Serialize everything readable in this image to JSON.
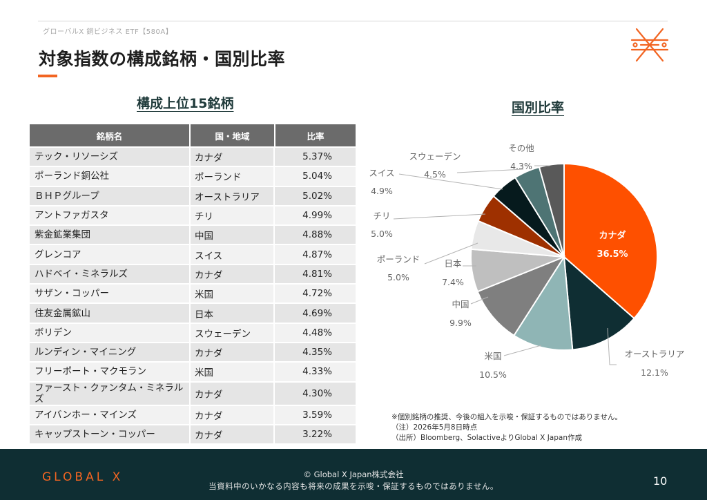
{
  "header": {
    "fund_name": "グローバルX 銅ビジネス ETF【580A】",
    "page_title": "対象指数の構成銘柄・国別比率"
  },
  "table": {
    "title": "構成上位15銘柄",
    "columns": [
      "銘柄名",
      "国・地域",
      "比率"
    ],
    "rows": [
      {
        "name": "テック・リソーシズ",
        "country": "カナダ",
        "weight": "5.37%"
      },
      {
        "name": "ポーランド銅公社",
        "country": "ポーランド",
        "weight": "5.04%"
      },
      {
        "name": "ＢＨＰグループ",
        "country": "オーストラリア",
        "weight": "5.02%"
      },
      {
        "name": "アントファガスタ",
        "country": "チリ",
        "weight": "4.99%"
      },
      {
        "name": "紫金鉱業集団",
        "country": "中国",
        "weight": "4.88%"
      },
      {
        "name": "グレンコア",
        "country": "スイス",
        "weight": "4.87%"
      },
      {
        "name": "ハドベイ・ミネラルズ",
        "country": "カナダ",
        "weight": "4.81%"
      },
      {
        "name": "サザン・コッパー",
        "country": "米国",
        "weight": "4.72%"
      },
      {
        "name": "住友金属鉱山",
        "country": "日本",
        "weight": "4.69%"
      },
      {
        "name": "ボリデン",
        "country": "スウェーデン",
        "weight": "4.48%"
      },
      {
        "name": "ルンディン・マイニング",
        "country": "カナダ",
        "weight": "4.35%"
      },
      {
        "name": "フリーポート・マクモラン",
        "country": "米国",
        "weight": "4.33%"
      },
      {
        "name": "ファースト・クァンタム・ミネラルズ",
        "country": "カナダ",
        "weight": "4.30%"
      },
      {
        "name": "アイバンホー・マインズ",
        "country": "カナダ",
        "weight": "3.59%"
      },
      {
        "name": "キャップストーン・コッパー",
        "country": "カナダ",
        "weight": "3.22%"
      }
    ]
  },
  "chart_data": {
    "type": "pie",
    "title": "国別比率",
    "slices": [
      {
        "label": "カナダ",
        "value": 36.5,
        "display": "36.5%",
        "color": "#fe5000"
      },
      {
        "label": "オーストラリア",
        "value": 12.1,
        "display": "12.1%",
        "color": "#0f2e33"
      },
      {
        "label": "米国",
        "value": 10.5,
        "display": "10.5%",
        "color": "#8fb5b5"
      },
      {
        "label": "中国",
        "value": 9.9,
        "display": "9.9%",
        "color": "#7f7f7f"
      },
      {
        "label": "日本",
        "value": 7.4,
        "display": "7.4%",
        "color": "#bfbfbf"
      },
      {
        "label": "ポーランド",
        "value": 5.0,
        "display": "5.0%",
        "color": "#e8e8e8"
      },
      {
        "label": "チリ",
        "value": 5.0,
        "display": "5.0%",
        "color": "#9e3000"
      },
      {
        "label": "スイス",
        "value": 4.9,
        "display": "4.9%",
        "color": "#061a1d"
      },
      {
        "label": "スウェーデン",
        "value": 4.5,
        "display": "4.5%",
        "color": "#4e7474"
      },
      {
        "label": "その他",
        "value": 4.3,
        "display": "4.3%",
        "color": "#595959"
      }
    ]
  },
  "notes": [
    "※個別銘柄の推奨、今後の組入を示唆・保証するものではありません。",
    "（注）2026年5月8日時点",
    "（出所）Bloomberg、SolactiveよりGlobal X Japan作成"
  ],
  "footer": {
    "logo_text": "GLOBAL X",
    "copyright": "© Global X Japan株式会社",
    "disclaimer": "当資料中のいかなる内容も将来の成果を示唆・保証するものではありません。",
    "page_number": "10"
  },
  "colors": {
    "accent": "#f26522",
    "footer_bg": "#0f2e33",
    "table_header": "#6b6b6b"
  }
}
